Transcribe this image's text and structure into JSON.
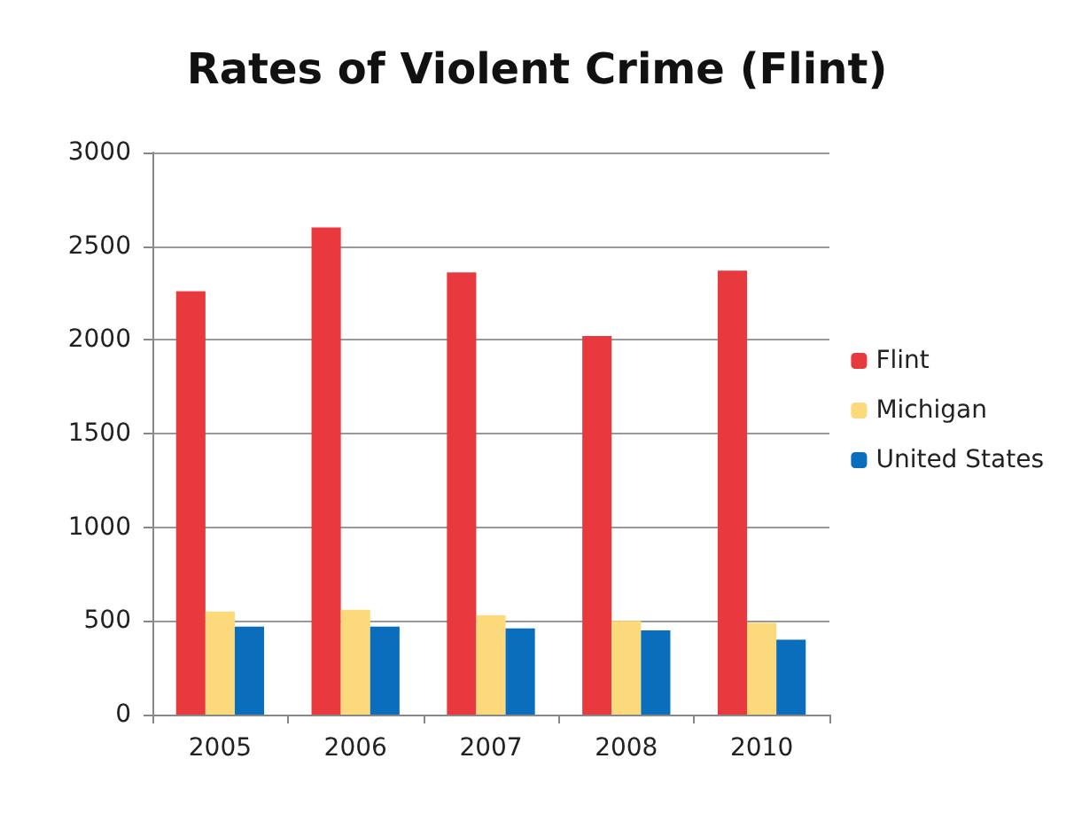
{
  "chart_data": {
    "type": "bar",
    "title": "Rates of Violent Crime (Flint)",
    "categories": [
      "2005",
      "2006",
      "2007",
      "2008",
      "2010"
    ],
    "series": [
      {
        "name": "Flint",
        "color": "#e8393f",
        "values": [
          2260,
          2600,
          2360,
          2020,
          2370
        ]
      },
      {
        "name": "Michigan",
        "color": "#fcd97a",
        "values": [
          550,
          560,
          530,
          500,
          490
        ]
      },
      {
        "name": "United States",
        "color": "#0a6ebd",
        "values": [
          470,
          470,
          460,
          450,
          400
        ]
      }
    ],
    "ylim": [
      0,
      3000
    ],
    "yticks": [
      0,
      500,
      1000,
      1500,
      2000,
      2500,
      3000
    ],
    "grid": "y",
    "legend": "right"
  }
}
